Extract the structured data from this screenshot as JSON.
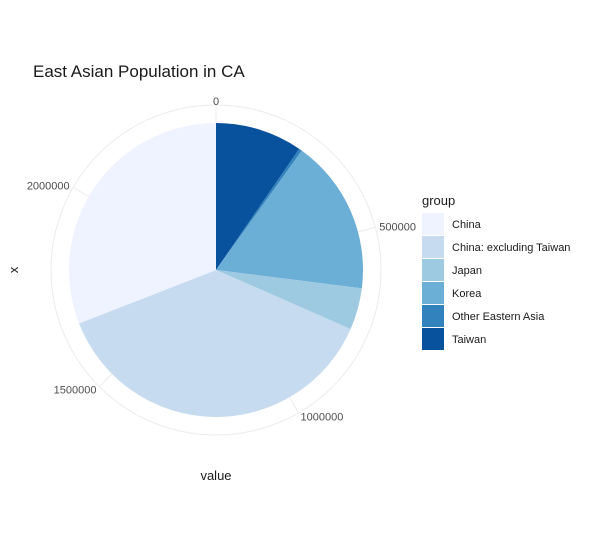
{
  "chart_data": {
    "type": "pie",
    "title": "East Asian Population in CA",
    "xlabel": "value",
    "ylabel": "x",
    "legend_title": "group",
    "legend_position": "right",
    "grid": true,
    "scale_max": 2400000,
    "slices": [
      {
        "group": "Taiwan",
        "value": 230000,
        "color": "#08519c"
      },
      {
        "group": "Other Eastern Asia",
        "value": 8000,
        "color": "#3182bd"
      },
      {
        "group": "Korea",
        "value": 410000,
        "color": "#6baed6"
      },
      {
        "group": "Japan",
        "value": 110000,
        "color": "#9ecae1"
      },
      {
        "group": "China: excluding Taiwan",
        "value": 900000,
        "color": "#c6dbef"
      },
      {
        "group": "China",
        "value": 742000,
        "color": "#eff3ff"
      }
    ],
    "legend": [
      "China",
      "China: excluding Taiwan",
      "Japan",
      "Korea",
      "Other Eastern Asia",
      "Taiwan"
    ],
    "ticks": [
      {
        "value": 0,
        "label": "0"
      },
      {
        "value": 500000,
        "label": "500000"
      },
      {
        "value": 1000000,
        "label": "1000000"
      },
      {
        "value": 1500000,
        "label": "1500000"
      },
      {
        "value": 2000000,
        "label": "2000000"
      }
    ]
  }
}
